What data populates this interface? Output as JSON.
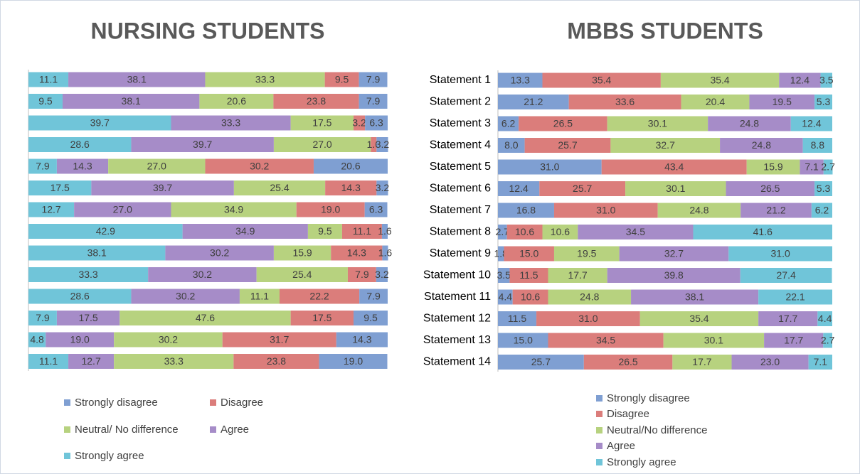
{
  "chart_data": [
    {
      "type": "bar",
      "orientation": "horizontal",
      "stacked": true,
      "title": "NURSING STUDENTS",
      "categories": [
        null,
        null,
        null,
        null,
        null,
        null,
        null,
        null,
        null,
        null,
        null,
        null,
        null,
        null
      ],
      "xlim": [
        0,
        100
      ],
      "series": [
        {
          "name": "Strongly disagree",
          "color": "#7f9fd2",
          "values": [
            7.9,
            7.9,
            6.3,
            3.2,
            20.6,
            3.2,
            6.3,
            1.6,
            1.6,
            3.2,
            7.9,
            9.5,
            14.3,
            19.0
          ],
          "value_labels": [
            "7.9",
            "7.9",
            "6.3",
            "3.2",
            "20.6",
            "3.2",
            "6.3",
            "1.6",
            "1.6",
            "3.2",
            "7.9",
            "9.5",
            "14.3",
            "19.0"
          ]
        },
        {
          "name": "Disagree",
          "color": "#db7d7b",
          "values": [
            9.5,
            23.8,
            3.2,
            1.6,
            30.2,
            14.3,
            19.0,
            11.1,
            14.3,
            7.9,
            22.2,
            17.5,
            31.7,
            23.8
          ],
          "value_labels": [
            "9.5",
            "23.8",
            "3.2",
            "1.6",
            "30.2",
            "14.3",
            "19.0",
            "11.1",
            "14.3",
            "7.9",
            "22.2",
            "17.5",
            "31.7",
            "23.8"
          ]
        },
        {
          "name": "Neutral/ No difference",
          "color": "#b7d27f",
          "values": [
            33.3,
            20.6,
            17.5,
            27.0,
            27.0,
            25.4,
            34.9,
            9.5,
            15.9,
            25.4,
            11.1,
            47.6,
            30.2,
            33.3
          ],
          "value_labels": [
            "33.3",
            "20.6",
            "17.5",
            "27.0",
            "27.0",
            "25.4",
            "34.9",
            "9.5",
            "15.9",
            "25.4",
            "11.1",
            "47.6",
            "30.2",
            "33.3"
          ]
        },
        {
          "name": "Agree",
          "color": "#a68cc8",
          "values": [
            38.1,
            38.1,
            33.3,
            39.7,
            14.3,
            39.7,
            27.0,
            34.9,
            30.2,
            30.2,
            30.2,
            17.5,
            19.0,
            12.7
          ],
          "value_labels": [
            "38.1",
            "38.1",
            "33.3",
            "39.7",
            "14.3",
            "39.7",
            "27.0",
            "34.9",
            "30.2",
            "30.2",
            "30.2",
            "17.5",
            "19.0",
            "12.7"
          ]
        },
        {
          "name": "Strongly agree",
          "color": "#70c5d9",
          "values": [
            11.1,
            9.5,
            39.7,
            28.6,
            7.9,
            17.5,
            12.7,
            42.9,
            38.1,
            33.3,
            28.6,
            7.9,
            4.8,
            11.1
          ],
          "value_labels": [
            "11.1",
            "9.5",
            "39.7",
            "28.6",
            "7.9",
            "17.5",
            "12.7",
            "42.9",
            "38.1",
            "33.3",
            "28.6",
            "7.9",
            "4.8",
            "11.1"
          ]
        }
      ]
    },
    {
      "type": "bar",
      "orientation": "horizontal",
      "stacked": true,
      "title": "MBBS STUDENTS",
      "categories": [
        "Statement 1",
        "Statement 2",
        "Statement 3",
        "Statement 4",
        "Statement 5",
        "Statement 6",
        "Statement 7",
        "Statement 8",
        "Statement 9",
        "Statement 10",
        "Statement 11",
        "Statement 12",
        "Statement 13",
        "Statement 14"
      ],
      "xlim": [
        0,
        100
      ],
      "series": [
        {
          "name": "Strongly disagree",
          "color": "#7f9fd2",
          "values": [
            13.3,
            21.2,
            6.2,
            8.0,
            31.0,
            12.4,
            16.8,
            2.7,
            1.8,
            3.5,
            4.4,
            11.5,
            15.0,
            25.7
          ],
          "value_labels": [
            "13.3",
            "21.2",
            "6.2",
            "8.0",
            "31.0",
            "12.4",
            "16.8",
            "2.7",
            "1.8",
            "3.5",
            "4.4",
            "11.5",
            "15.0",
            "25.7"
          ]
        },
        {
          "name": "Disagree",
          "color": "#db7d7b",
          "values": [
            35.4,
            33.6,
            26.5,
            25.7,
            43.4,
            25.7,
            31.0,
            10.6,
            15.0,
            11.5,
            10.6,
            31.0,
            34.5,
            26.5
          ],
          "value_labels": [
            "35.4",
            "33.6",
            "26.5",
            "25.7",
            "43.4",
            "25.7",
            "31.0",
            "10.6",
            "15.0",
            "11.5",
            "10.6",
            "31.0",
            "34.5",
            "26.5"
          ]
        },
        {
          "name": "Neutral/No difference",
          "color": "#b7d27f",
          "values": [
            35.4,
            20.4,
            30.1,
            32.7,
            15.9,
            30.1,
            24.8,
            10.6,
            19.5,
            17.7,
            24.8,
            35.4,
            30.1,
            17.7
          ],
          "value_labels": [
            "35.4",
            "20.4",
            "30.1",
            "32.7",
            "15.9",
            "30.1",
            "24.8",
            "10.6",
            "19.5",
            "17.7",
            "24.8",
            "35.4",
            "30.1",
            "17.7"
          ]
        },
        {
          "name": "Agree",
          "color": "#a68cc8",
          "values": [
            12.4,
            19.5,
            24.8,
            24.8,
            7.1,
            26.5,
            21.2,
            34.5,
            32.7,
            39.8,
            38.1,
            17.7,
            17.7,
            23.0
          ],
          "value_labels": [
            "12.4",
            "19.5",
            "24.8",
            "24.8",
            "7.1",
            "26.5",
            "21.2",
            "34.5",
            "32.7",
            "39.8",
            "38.1",
            "17.7",
            "17.7",
            "23.0"
          ]
        },
        {
          "name": "Strongly agree",
          "color": "#70c5d9",
          "values": [
            3.5,
            5.3,
            12.4,
            8.8,
            2.7,
            5.3,
            6.2,
            41.6,
            31.0,
            27.4,
            22.1,
            4.4,
            2.7,
            7.1
          ],
          "value_labels": [
            "3.5",
            "5.3",
            "12.4",
            "8.8",
            "2.7",
            "5.3",
            "6.2",
            "41.6",
            "31.0",
            "27.4",
            "22.1",
            "4.4",
            "2.7",
            "7.1"
          ]
        }
      ]
    }
  ]
}
